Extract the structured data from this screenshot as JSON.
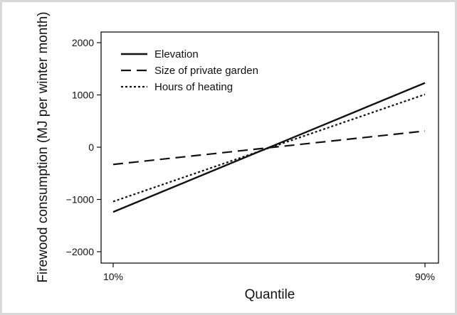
{
  "chart_data": {
    "type": "line",
    "title": "",
    "xlabel": "Quantile",
    "ylabel": "Firewood consumption (MJ per winter month)",
    "x": [
      10,
      90
    ],
    "x_tick_labels": [
      "10%",
      "90%"
    ],
    "ylim": [
      -2200,
      2100
    ],
    "y_ticks": [
      2000,
      1000,
      0,
      -1000,
      -2000
    ],
    "y_tick_labels": [
      "2000",
      "1000",
      "0",
      "−1000",
      "−2000"
    ],
    "grid": false,
    "legend_position": "top-left",
    "series": [
      {
        "name": "Elevation",
        "style": "solid",
        "values": [
          -1240,
          1230
        ]
      },
      {
        "name": "Size of private garden",
        "style": "dashed",
        "values": [
          -330,
          310
        ]
      },
      {
        "name": "Hours of heating",
        "style": "dotted",
        "values": [
          -1040,
          1010
        ]
      }
    ],
    "colors": {
      "line": "#111111",
      "frame": "#d9d9d9"
    }
  }
}
